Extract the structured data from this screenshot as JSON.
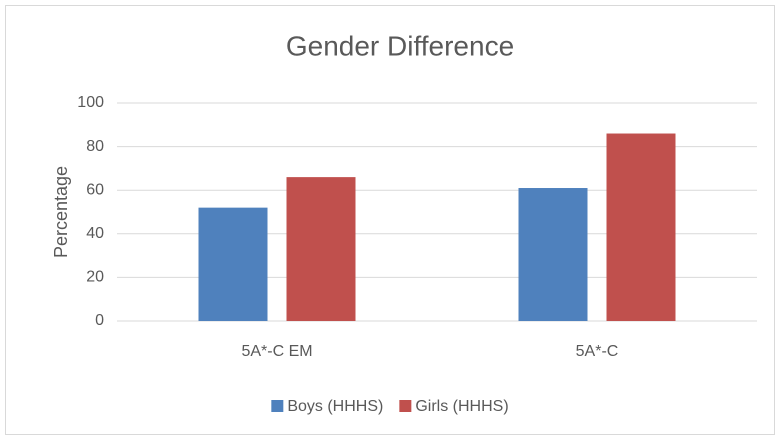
{
  "chart_data": {
    "type": "bar",
    "title": "Gender Difference",
    "y_label": "Percentage",
    "categories": [
      "5A*-C EM",
      "5A*-C"
    ],
    "series": [
      {
        "name": "Boys (HHHS)",
        "color": "#4f81bd",
        "values": [
          52,
          61
        ]
      },
      {
        "name": "Girls (HHHS)",
        "color": "#c0504d",
        "values": [
          66,
          86
        ]
      }
    ],
    "ylim": [
      0,
      100
    ],
    "yticks": [
      0,
      20,
      40,
      60,
      80,
      100
    ],
    "grid": true,
    "legend": "bottom"
  }
}
